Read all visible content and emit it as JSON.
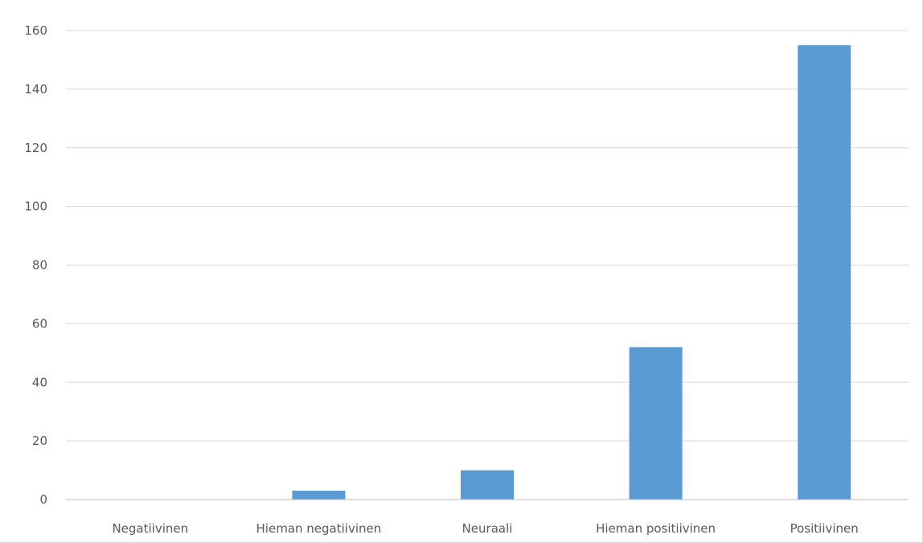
{
  "chart_data": {
    "type": "bar",
    "title": "",
    "xlabel": "",
    "ylabel": "",
    "categories": [
      "Negatiivinen",
      "Hieman negatiivinen",
      "Neuraali",
      "Hieman positiivinen",
      "Positiivinen"
    ],
    "values": [
      0,
      3,
      10,
      52,
      155
    ],
    "ylim": [
      0,
      160
    ],
    "yticks": [
      0,
      20,
      40,
      60,
      80,
      100,
      120,
      140,
      160
    ],
    "grid": true,
    "legend": "none",
    "bar_color": "#5b9bd5",
    "grid_color": "#d9d9d9",
    "axis_color": "#bfbfbf",
    "label_color": "#595959"
  }
}
